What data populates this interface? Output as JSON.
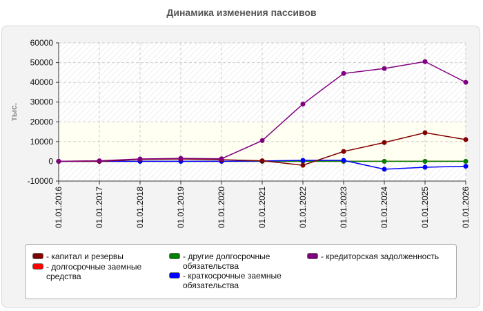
{
  "chart_data": {
    "type": "line",
    "title": "Динамика изменения пассивов",
    "ylabel": "тыс.",
    "xlabel": "",
    "x": [
      "01.01.2016",
      "01.01.2017",
      "01.01.2018",
      "01.01.2019",
      "01.01.2020",
      "01.01.2021",
      "01.01.2022",
      "01.01.2023",
      "01.01.2024",
      "01.01.2025",
      "01.01.2026"
    ],
    "ylim": [
      -10000,
      60000
    ],
    "yticks": [
      -10000,
      0,
      10000,
      20000,
      30000,
      40000,
      50000,
      60000
    ],
    "grid": true,
    "legend_position": "bottom",
    "series": [
      {
        "name": "- капитал и резервы",
        "color": "#800000",
        "values": [
          0,
          0,
          1000,
          1200,
          800,
          300,
          -2000,
          5000,
          9500,
          14500,
          11000
        ]
      },
      {
        "name": "- долгосрочные заемные средства",
        "color": "#ff0000",
        "values": [
          0,
          0,
          0,
          0,
          0,
          0,
          0,
          0,
          0,
          0,
          0
        ]
      },
      {
        "name": "- другие долгосрочные обязательства",
        "color": "#008000",
        "values": [
          0,
          0,
          0,
          0,
          0,
          0,
          0,
          0,
          0,
          0,
          0
        ]
      },
      {
        "name": "- краткосрочные заемные обязательства",
        "color": "#0000ff",
        "values": [
          0,
          0,
          0,
          0,
          0,
          200,
          500,
          500,
          -4000,
          -3000,
          -2500
        ]
      },
      {
        "name": "- кредиторская задолженность",
        "color": "#800080",
        "values": [
          0,
          300,
          1200,
          1500,
          1300,
          10500,
          29000,
          44500,
          47000,
          50500,
          40000
        ]
      }
    ]
  }
}
